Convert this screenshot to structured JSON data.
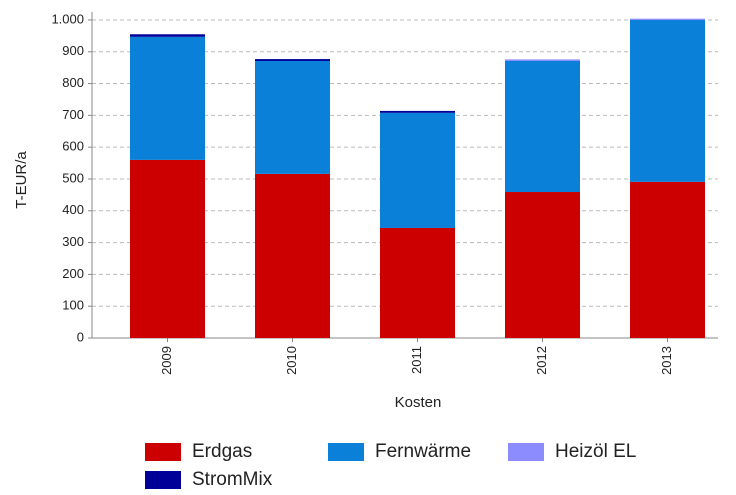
{
  "chart_data": {
    "type": "stacked_bar",
    "x_label": "Kosten",
    "y_label": "T-EUR/a",
    "categories": [
      "2009",
      "2010",
      "2011",
      "2012",
      "2013"
    ],
    "series": [
      {
        "name": "Erdgas",
        "color": "#cc0000",
        "values": [
          560,
          516,
          346,
          459,
          491
        ]
      },
      {
        "name": "Fernwärme",
        "color": "#0a80d8",
        "values": [
          387,
          355,
          362,
          412,
          509
        ]
      },
      {
        "name": "Heizöl EL",
        "color": "#8c8cff",
        "values": [
          0,
          0,
          0,
          5,
          4
        ]
      },
      {
        "name": "StromMix",
        "color": "#000099",
        "values": [
          8,
          6,
          6,
          0,
          0
        ]
      }
    ],
    "ylim": [
      0,
      1025
    ],
    "yticks": [
      0,
      100,
      200,
      300,
      400,
      500,
      600,
      700,
      800,
      900,
      {
        "value": 1000,
        "label": "1.000"
      }
    ],
    "grid": true
  }
}
